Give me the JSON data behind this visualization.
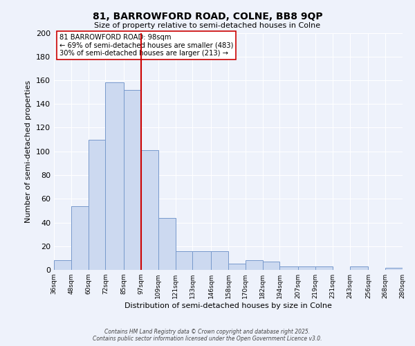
{
  "title": "81, BARROWFORD ROAD, COLNE, BB8 9QP",
  "subtitle": "Size of property relative to semi-detached houses in Colne",
  "xlabel": "Distribution of semi-detached houses by size in Colne",
  "ylabel": "Number of semi-detached properties",
  "bin_edges": [
    36,
    48,
    60,
    72,
    85,
    97,
    109,
    121,
    133,
    146,
    158,
    170,
    182,
    194,
    207,
    219,
    231,
    243,
    256,
    268,
    280
  ],
  "bar_heights": [
    8,
    54,
    110,
    158,
    152,
    101,
    44,
    16,
    16,
    16,
    5,
    8,
    7,
    3,
    3,
    3,
    0,
    3,
    0,
    2
  ],
  "bar_color": "#ccd9f0",
  "bar_edge_color": "#7799cc",
  "vline_x": 97,
  "vline_color": "#cc0000",
  "annotation_title": "81 BARROWFORD ROAD: 98sqm",
  "annotation_line2": "← 69% of semi-detached houses are smaller (483)",
  "annotation_line3": "30% of semi-detached houses are larger (213) →",
  "annotation_box_color": "#ffffff",
  "annotation_box_edge": "#cc0000",
  "ylim": [
    0,
    200
  ],
  "yticks": [
    0,
    20,
    40,
    60,
    80,
    100,
    120,
    140,
    160,
    180,
    200
  ],
  "footer1": "Contains HM Land Registry data © Crown copyright and database right 2025.",
  "footer2": "Contains public sector information licensed under the Open Government Licence v3.0.",
  "bg_color": "#eef2fb",
  "grid_color": "#ffffff"
}
